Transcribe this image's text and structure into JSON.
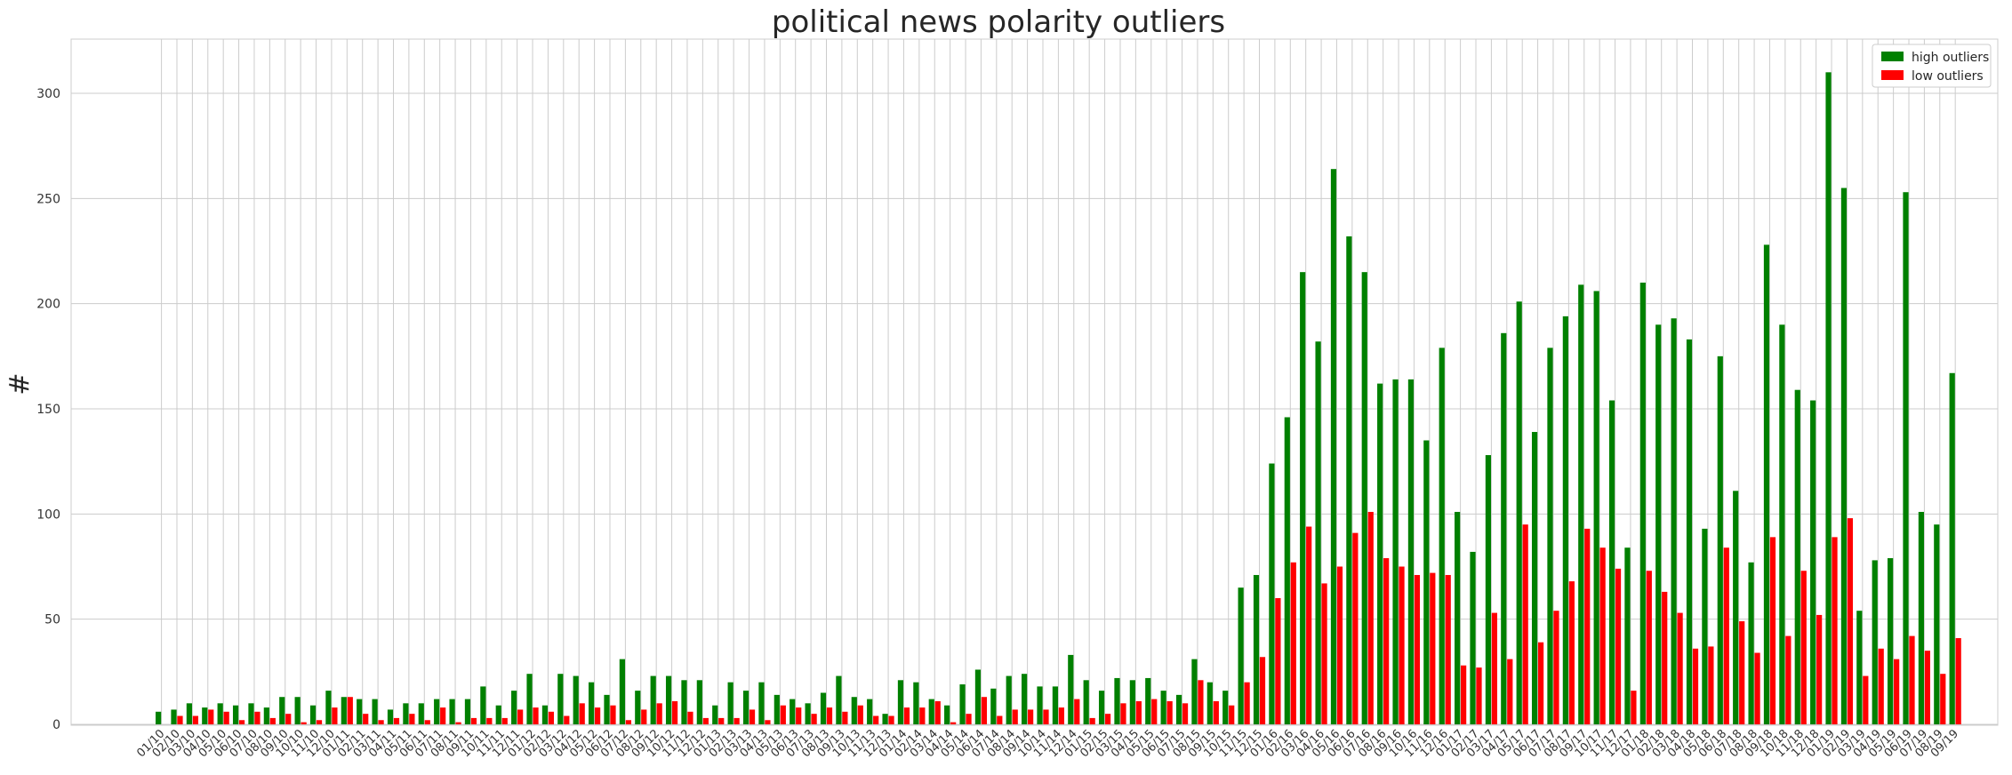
{
  "chart_data": {
    "type": "bar",
    "title": "political news polarity outliers",
    "xlabel": "",
    "ylabel": "#",
    "ylim": [
      0,
      325
    ],
    "yticks": [
      0,
      50,
      100,
      150,
      200,
      250,
      300
    ],
    "grid": true,
    "legend_position": "top-right",
    "categories": [
      "01/10",
      "02/10",
      "03/10",
      "04/10",
      "05/10",
      "06/10",
      "07/10",
      "08/10",
      "09/10",
      "10/10",
      "11/10",
      "12/10",
      "01/11",
      "02/11",
      "03/11",
      "04/11",
      "05/11",
      "06/11",
      "07/11",
      "08/11",
      "09/11",
      "10/11",
      "11/11",
      "12/11",
      "01/12",
      "02/12",
      "03/12",
      "04/12",
      "05/12",
      "06/12",
      "07/12",
      "08/12",
      "09/12",
      "10/12",
      "11/12",
      "12/12",
      "01/13",
      "02/13",
      "03/13",
      "04/13",
      "05/13",
      "06/13",
      "07/13",
      "08/13",
      "09/13",
      "10/13",
      "11/13",
      "12/13",
      "01/14",
      "02/14",
      "03/14",
      "04/14",
      "05/14",
      "06/14",
      "07/14",
      "08/14",
      "09/14",
      "10/14",
      "11/14",
      "12/14",
      "01/15",
      "02/15",
      "03/15",
      "04/15",
      "05/15",
      "06/15",
      "07/15",
      "08/15",
      "09/15",
      "10/15",
      "11/15",
      "12/15",
      "01/16",
      "02/16",
      "03/16",
      "04/16",
      "05/16",
      "06/16",
      "07/16",
      "08/16",
      "09/16",
      "10/16",
      "11/16",
      "12/16",
      "01/17",
      "02/17",
      "03/17",
      "04/17",
      "05/17",
      "06/17",
      "07/17",
      "08/17",
      "09/17",
      "10/17",
      "11/17",
      "12/17",
      "01/18",
      "02/18",
      "03/18",
      "04/18",
      "05/18",
      "06/18",
      "07/18",
      "08/18",
      "09/18",
      "10/18",
      "11/18",
      "12/18",
      "01/19",
      "02/19",
      "03/19",
      "04/19",
      "05/19",
      "06/19",
      "07/19",
      "08/19",
      "09/19"
    ],
    "series": [
      {
        "name": "high outliers",
        "color": "#008000",
        "values": [
          6,
          7,
          10,
          8,
          10,
          9,
          10,
          8,
          13,
          13,
          9,
          16,
          13,
          12,
          12,
          7,
          10,
          10,
          12,
          12,
          12,
          18,
          9,
          16,
          24,
          9,
          24,
          23,
          20,
          14,
          31,
          16,
          23,
          23,
          21,
          21,
          9,
          20,
          16,
          20,
          14,
          12,
          10,
          15,
          23,
          13,
          12,
          5,
          21,
          20,
          12,
          9,
          19,
          26,
          17,
          23,
          24,
          18,
          18,
          33,
          21,
          16,
          22,
          21,
          22,
          16,
          14,
          31,
          20,
          16,
          65,
          71,
          124,
          146,
          215,
          182,
          264,
          232,
          215,
          162,
          164,
          164,
          135,
          179,
          101,
          82,
          128,
          186,
          201,
          139,
          179,
          194,
          209,
          206,
          154,
          84,
          210,
          190,
          193,
          183,
          93,
          175,
          111,
          77,
          228,
          190,
          159,
          154,
          310,
          255,
          54,
          78,
          79,
          253,
          101,
          95,
          167
        ]
      },
      {
        "name": "low outliers",
        "color": "#ff0000",
        "values": [
          0,
          4,
          4,
          7,
          6,
          2,
          6,
          3,
          5,
          1,
          2,
          8,
          13,
          5,
          2,
          3,
          5,
          2,
          8,
          1,
          3,
          3,
          3,
          7,
          8,
          6,
          4,
          10,
          8,
          9,
          2,
          7,
          10,
          11,
          6,
          3,
          3,
          3,
          7,
          2,
          9,
          8,
          5,
          8,
          6,
          9,
          4,
          4,
          8,
          8,
          11,
          1,
          5,
          13,
          4,
          7,
          7,
          7,
          8,
          12,
          3,
          5,
          10,
          11,
          12,
          11,
          10,
          21,
          11,
          9,
          20,
          32,
          60,
          77,
          94,
          67,
          75,
          91,
          101,
          79,
          75,
          71,
          72,
          71,
          28,
          27,
          53,
          31,
          95,
          39,
          54,
          68,
          93,
          84,
          74,
          16,
          73,
          63,
          53,
          36,
          37,
          84,
          49,
          34,
          89,
          42,
          73,
          52,
          89,
          98,
          23,
          36,
          31,
          42,
          35,
          24,
          41
        ]
      }
    ]
  }
}
